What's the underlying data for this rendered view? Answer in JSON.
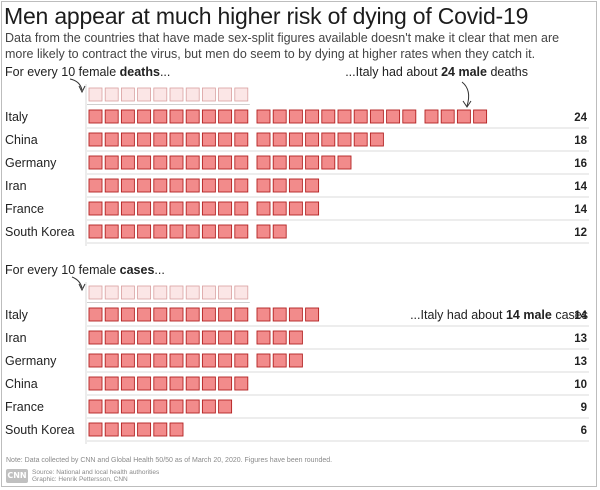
{
  "header": {
    "title": "Men appear at much higher risk of dying of Covid-19",
    "subtitle": "Data from the countries that have made sex-split figures available doesn't make it clear that men are more likely to contract the virus, but men do seem to by dying at higher rates when they catch it."
  },
  "colors": {
    "male_fill": "#f28b8b",
    "male_stroke": "#b22222",
    "female_fill": "#fbe6e6",
    "female_stroke": "#d9a0a0",
    "rule": "#cfcfcf"
  },
  "chart_data": [
    {
      "type": "bar",
      "unit_count": 10,
      "intro_prefix": "For every 10 female ",
      "intro_bold": "deaths",
      "intro_suffix": "...",
      "callout_prefix": "...Italy had about ",
      "callout_bold": "24 male",
      "callout_suffix": " deaths",
      "categories": [
        "Italy",
        "China",
        "Germany",
        "Iran",
        "France",
        "South Korea"
      ],
      "values": [
        24,
        18,
        16,
        14,
        14,
        12
      ]
    },
    {
      "type": "bar",
      "unit_count": 10,
      "intro_prefix": "For every 10 female ",
      "intro_bold": "cases",
      "intro_suffix": "...",
      "callout_prefix": "...Italy had about ",
      "callout_bold": "14 male",
      "callout_suffix": " cases",
      "categories": [
        "Italy",
        "Iran",
        "Germany",
        "China",
        "France",
        "South Korea"
      ],
      "values": [
        14,
        13,
        13,
        10,
        9,
        6
      ]
    }
  ],
  "footer": {
    "note": "Note: Data collected by CNN and Global Health 50/50 as of March 20, 2020. Figures have been rounded.",
    "logo": "CNN",
    "source_line1": "Source: National and local health authorities",
    "source_line2": "Graphic: Henrik Pettersson, CNN"
  }
}
